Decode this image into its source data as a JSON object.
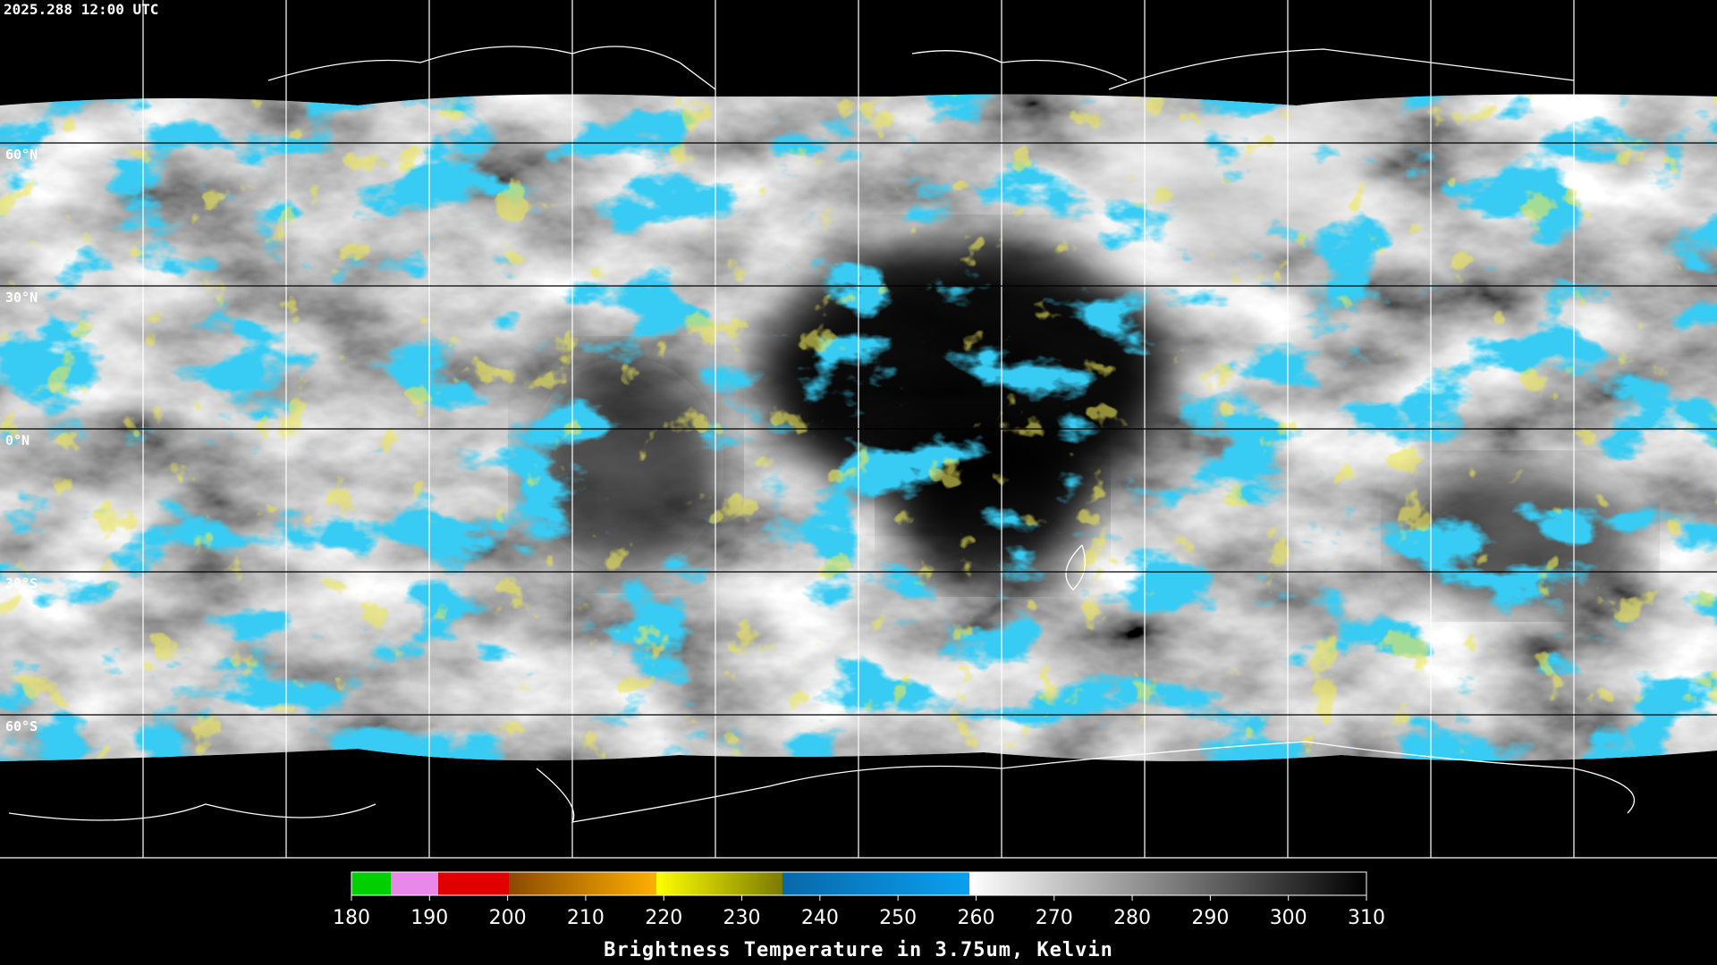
{
  "header": {
    "timestamp": "2025.288 12:00 UTC"
  },
  "map": {
    "latitude_labels": [
      "60°N",
      "30°N",
      "0°N",
      "30°S",
      "60°S"
    ]
  },
  "colorbar": {
    "ticks": [
      180,
      190,
      200,
      210,
      220,
      230,
      240,
      250,
      260,
      270,
      280,
      290,
      300,
      310
    ],
    "title": "Brightness Temperature in 3.75um, Kelvin"
  }
}
